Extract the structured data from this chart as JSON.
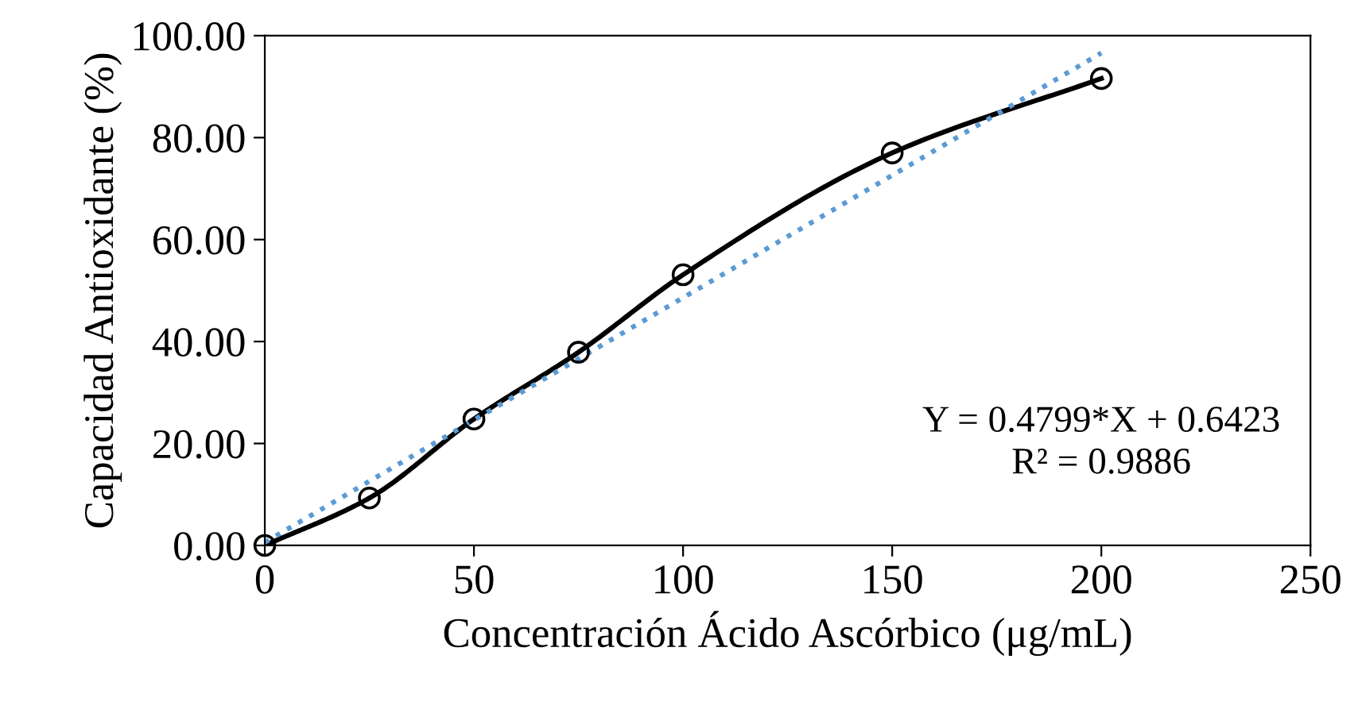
{
  "chart_data": {
    "type": "line",
    "xlabel": "Concentración Ácido Ascórbico (μg/mL)",
    "ylabel": "Capacidad Antioxidante (%)",
    "xlim": [
      0,
      250
    ],
    "xticks": [
      0,
      50,
      100,
      150,
      200,
      250
    ],
    "ylim": [
      0,
      100
    ],
    "yticks": [
      {
        "value": 0,
        "label": "0.00"
      },
      {
        "value": 20,
        "label": "20.00"
      },
      {
        "value": 40,
        "label": "40.00"
      },
      {
        "value": 60,
        "label": "60.00"
      },
      {
        "value": 80,
        "label": "80.00"
      },
      {
        "value": 100,
        "label": "100.00"
      }
    ],
    "grid": false,
    "marker": "circle",
    "line_style": "solid",
    "series": [
      {
        "color": "#000000",
        "x": [
          0,
          25,
          50,
          75,
          100,
          150,
          200
        ],
        "values": [
          0,
          9.3,
          24.8,
          37.9,
          53.1,
          77.0,
          91.6
        ]
      },
      {
        "color": "#5b9bd5",
        "x": [
          0,
          200
        ],
        "values": [
          0.6,
          96.6
        ],
        "line_style": "dotted",
        "marker": "none"
      }
    ],
    "annotations": [
      "Y = 0.4799*X + 0.6423\nR² = 0.9886"
    ]
  }
}
